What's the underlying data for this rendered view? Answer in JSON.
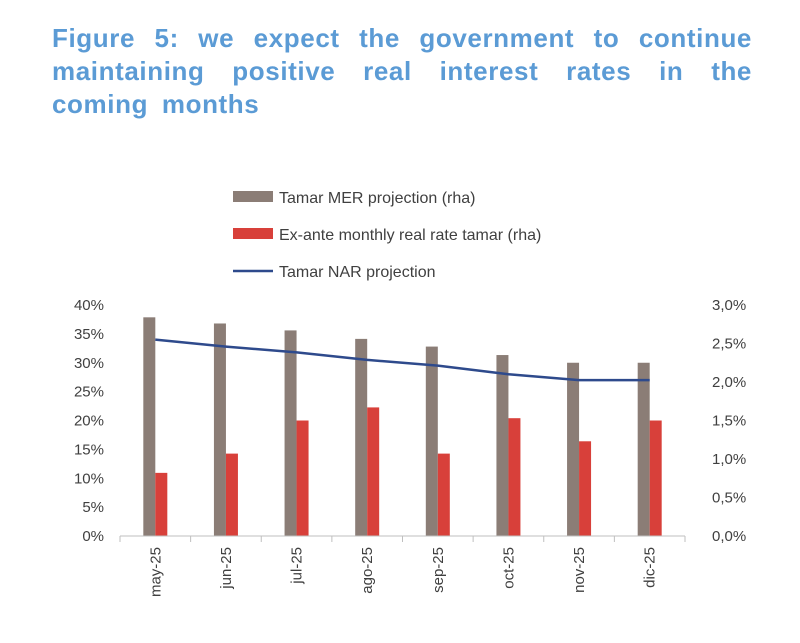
{
  "figure": {
    "title": "Figure 5: we expect the government to continue maintaining positive real interest rates in the coming months"
  },
  "colors": {
    "title": "#5b9bd5",
    "mer": "#8b7d76",
    "ex_ante": "#d8403a",
    "nar": "#2e4a8c"
  },
  "chart_data": {
    "type": "bar",
    "title": "Figure 5: we expect the government to continue maintaining positive real interest rates in the coming months",
    "categories": [
      "may-25",
      "jun-25",
      "jul-25",
      "ago-25",
      "sep-25",
      "oct-25",
      "nov-25",
      "dic-25"
    ],
    "series": [
      {
        "name": "Tamar MER projection (rha)",
        "type": "bar",
        "axis": "right",
        "values": [
          2.84,
          2.76,
          2.67,
          2.56,
          2.46,
          2.35,
          2.25,
          2.25
        ]
      },
      {
        "name": "Ex-ante monthly real rate tamar (rha)",
        "type": "bar",
        "axis": "right",
        "values": [
          0.82,
          1.07,
          1.5,
          1.67,
          1.07,
          1.53,
          1.23,
          1.5
        ]
      },
      {
        "name": "Tamar NAR projection",
        "type": "line",
        "axis": "left",
        "values": [
          34.0,
          32.8,
          31.8,
          30.5,
          29.5,
          28.0,
          27.0,
          27.0
        ]
      }
    ],
    "left_axis": {
      "ylim": [
        0,
        40
      ],
      "ticks": [
        "0%",
        "5%",
        "10%",
        "15%",
        "20%",
        "25%",
        "30%",
        "35%",
        "40%"
      ]
    },
    "right_axis": {
      "ylim": [
        0,
        3.0
      ],
      "ticks": [
        "0,0%",
        "0,5%",
        "1,0%",
        "1,5%",
        "2,0%",
        "2,5%",
        "3,0%"
      ]
    },
    "legend": [
      {
        "label": "Tamar MER projection (rha)",
        "kind": "bar",
        "series": 0
      },
      {
        "label": "Ex-ante monthly real rate tamar (rha)",
        "kind": "bar",
        "series": 1
      },
      {
        "label": "Tamar NAR projection",
        "kind": "line",
        "series": 2
      }
    ],
    "legend_position": "top-center",
    "xlabel": "",
    "ylabel": "",
    "grid": false
  }
}
